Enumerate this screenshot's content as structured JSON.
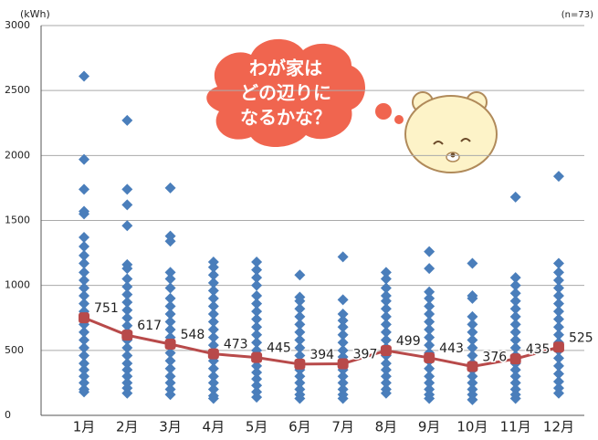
{
  "chart_data": {
    "type": "scatter",
    "unit_label": "(kWh)",
    "sample_label": "(n=73)",
    "bubble_lines": [
      "わが家は",
      "どの辺りに",
      "なるかな？"
    ],
    "categories": [
      "1月",
      "2月",
      "3月",
      "4月",
      "5月",
      "6月",
      "7月",
      "8月",
      "9月",
      "10月",
      "11月",
      "12月"
    ],
    "point_color": "#4a7ebb",
    "points": [
      [
        2610,
        1970,
        1740,
        1570,
        1550,
        1370,
        1300,
        1230,
        1170,
        1100,
        1040,
        980,
        920,
        860,
        800,
        700,
        640,
        580,
        520,
        460,
        400,
        350,
        300,
        250,
        200,
        180
      ],
      [
        2270,
        1740,
        1620,
        1460,
        1160,
        1130,
        1050,
        990,
        930,
        870,
        810,
        750,
        690,
        640,
        580,
        520,
        460,
        400,
        350,
        300,
        250,
        210,
        170
      ],
      [
        1750,
        1380,
        1340,
        1100,
        1050,
        980,
        900,
        840,
        780,
        720,
        660,
        600,
        540,
        480,
        420,
        360,
        300,
        250,
        200,
        160
      ],
      [
        1180,
        1140,
        1080,
        1020,
        960,
        900,
        840,
        780,
        720,
        660,
        600,
        540,
        480,
        420,
        360,
        300,
        250,
        200,
        150,
        130
      ],
      [
        1180,
        1120,
        1060,
        1000,
        920,
        860,
        800,
        740,
        680,
        620,
        560,
        500,
        440,
        380,
        330,
        280,
        230,
        180,
        140
      ],
      [
        1080,
        910,
        880,
        820,
        760,
        700,
        640,
        580,
        520,
        460,
        400,
        350,
        300,
        250,
        200,
        160,
        130
      ],
      [
        1220,
        890,
        780,
        730,
        680,
        620,
        560,
        500,
        450,
        400,
        350,
        300,
        250,
        200,
        160,
        130
      ],
      [
        1100,
        1050,
        980,
        920,
        880,
        820,
        760,
        700,
        640,
        580,
        520,
        460,
        400,
        350,
        300,
        250,
        200,
        170
      ],
      [
        1260,
        1130,
        950,
        900,
        840,
        780,
        720,
        660,
        600,
        540,
        480,
        420,
        360,
        300,
        250,
        200,
        160,
        130
      ],
      [
        1170,
        920,
        900,
        760,
        700,
        640,
        580,
        520,
        460,
        400,
        350,
        300,
        250,
        200,
        160,
        120
      ],
      [
        1680,
        1060,
        1000,
        940,
        880,
        820,
        760,
        700,
        640,
        580,
        520,
        460,
        400,
        350,
        300,
        250,
        200,
        160,
        130
      ],
      [
        1840,
        1170,
        1100,
        1040,
        980,
        920,
        860,
        800,
        740,
        680,
        620,
        560,
        500,
        440,
        380,
        320,
        260,
        210,
        170
      ]
    ],
    "line": {
      "color": "#b84a4a",
      "values": [
        751,
        617,
        548,
        473,
        445,
        394,
        397,
        499,
        443,
        376,
        435,
        525
      ]
    },
    "ylim": [
      0,
      3000
    ],
    "yticks": [
      0,
      500,
      1000,
      1500,
      2000,
      2500,
      3000
    ],
    "grid": true
  }
}
